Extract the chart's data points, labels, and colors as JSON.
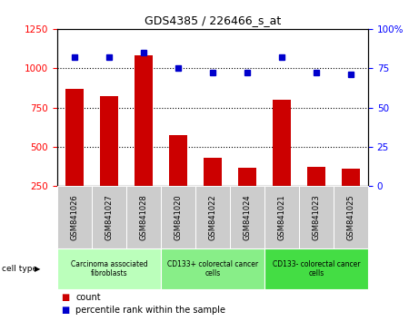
{
  "title": "GDS4385 / 226466_s_at",
  "samples": [
    "GSM841026",
    "GSM841027",
    "GSM841028",
    "GSM841020",
    "GSM841022",
    "GSM841024",
    "GSM841021",
    "GSM841023",
    "GSM841025"
  ],
  "counts": [
    870,
    820,
    1080,
    575,
    430,
    370,
    800,
    375,
    360
  ],
  "percentile_ranks": [
    82,
    82,
    85,
    75,
    72,
    72,
    82,
    72,
    71
  ],
  "groups": [
    {
      "label": "Carcinoma associated\nfibroblasts",
      "start": 0,
      "end": 3,
      "color": "#bbffbb"
    },
    {
      "label": "CD133+ colorectal cancer\ncells",
      "start": 3,
      "end": 6,
      "color": "#88ee88"
    },
    {
      "label": "CD133- colorectal cancer\ncells",
      "start": 6,
      "end": 9,
      "color": "#44dd44"
    }
  ],
  "bar_color": "#cc0000",
  "dot_color": "#0000cc",
  "ylim_left": [
    250,
    1250
  ],
  "ylim_right": [
    0,
    100
  ],
  "yticks_left": [
    250,
    500,
    750,
    1000,
    1250
  ],
  "yticks_right": [
    0,
    25,
    50,
    75,
    100
  ],
  "grid_values": [
    500,
    750,
    1000
  ],
  "background_color": "#ffffff",
  "legend_count_label": "count",
  "legend_pct_label": "percentile rank within the sample",
  "cell_type_label": "cell type"
}
